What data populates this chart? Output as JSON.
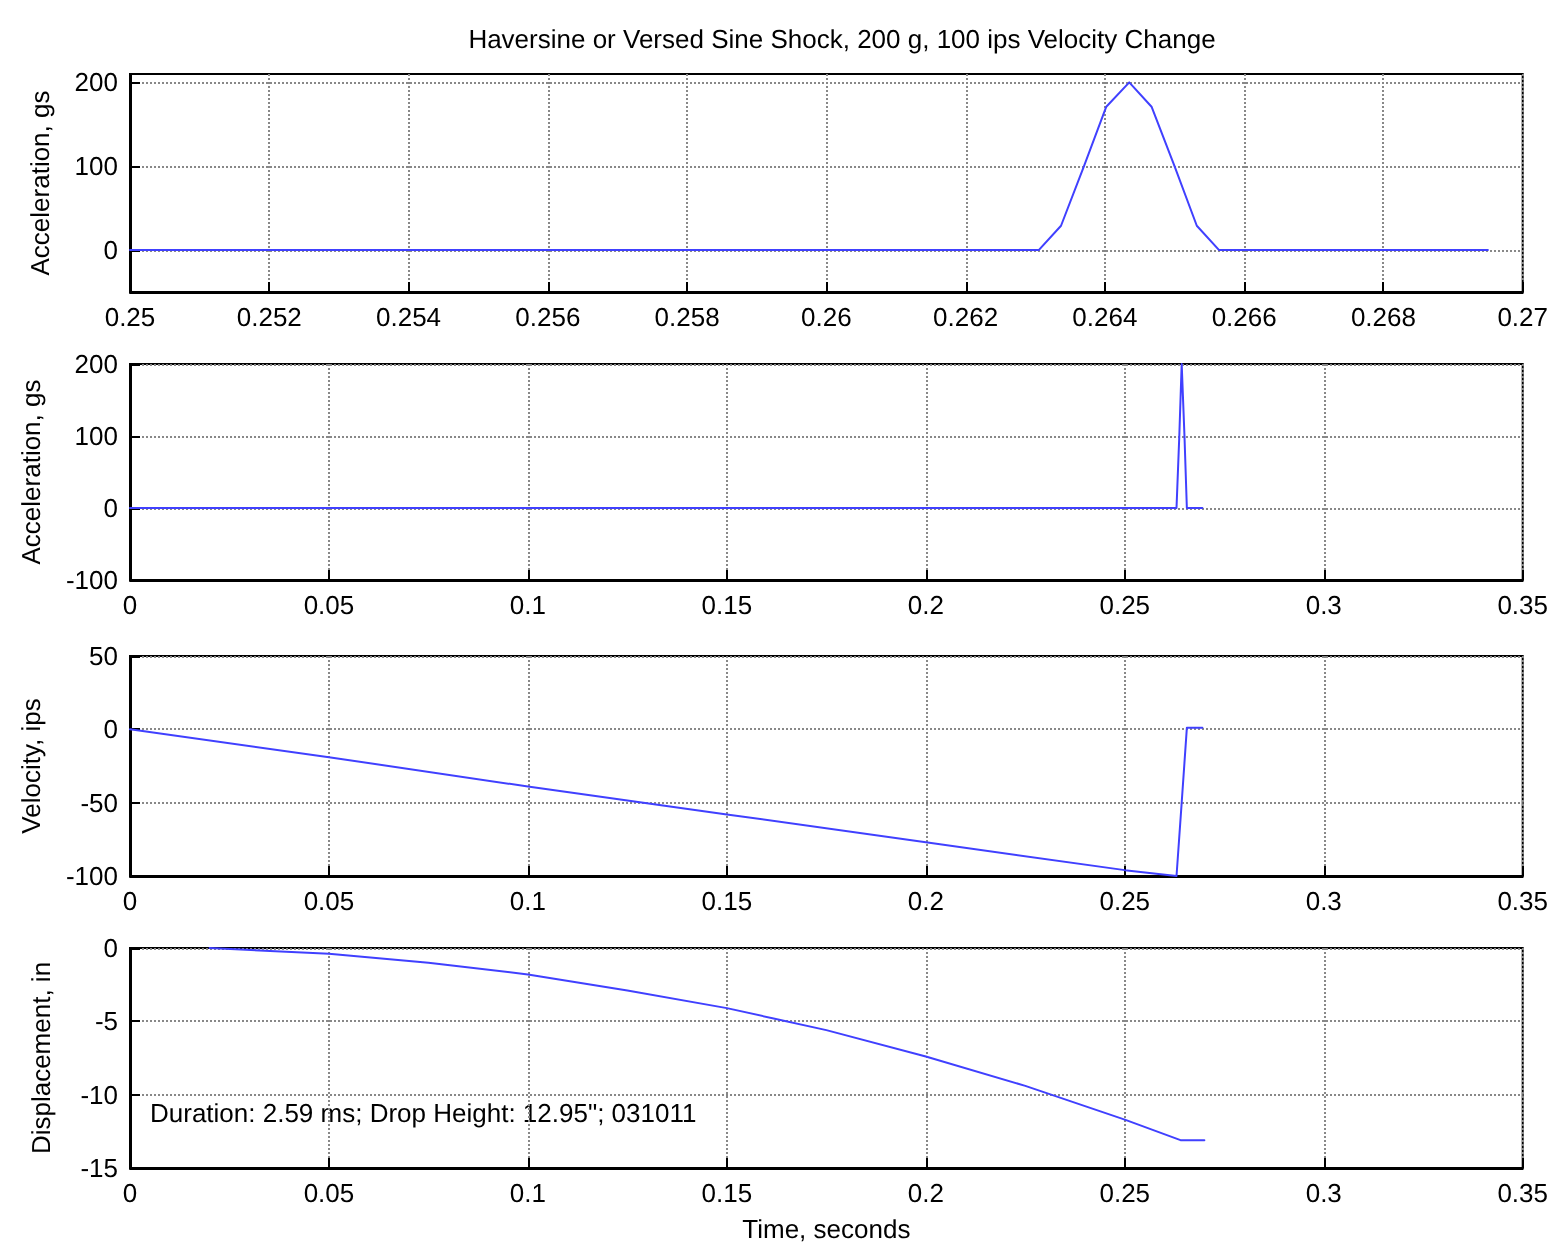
{
  "chart_data": [
    {
      "type": "line",
      "title": "Haversine or Versed Sine Shock, 200 g, 100 ips Velocity Change",
      "ylabel": "Acceleration, gs",
      "xlim": [
        0.25,
        0.27
      ],
      "ylim": [
        -50,
        210
      ],
      "xticks": [
        0.25,
        0.252,
        0.254,
        0.256,
        0.258,
        0.26,
        0.262,
        0.264,
        0.266,
        0.268,
        0.27
      ],
      "yticks": [
        0,
        100,
        200
      ],
      "grid": true,
      "marker": "none",
      "line_style": "solid",
      "series": [
        {
          "color": "#4040ff",
          "x": [
            0.25,
            0.26305,
            0.26337,
            0.2637,
            0.26402,
            0.26435,
            0.26467,
            0.265,
            0.26532,
            0.26564,
            0.2695
          ],
          "values": [
            0,
            0,
            29,
            100,
            171,
            200,
            171,
            100,
            29,
            0,
            0
          ]
        }
      ]
    },
    {
      "type": "line",
      "ylabel": "Acceleration, gs",
      "xlim": [
        0,
        0.35
      ],
      "ylim": [
        -100,
        200
      ],
      "xticks": [
        0,
        0.05,
        0.1,
        0.15,
        0.2,
        0.25,
        0.3,
        0.35
      ],
      "yticks": [
        -100,
        0,
        100,
        200
      ],
      "grid": true,
      "marker": "none",
      "line_style": "solid",
      "series": [
        {
          "color": "#4040ff",
          "x": [
            0,
            0.263,
            0.2637,
            0.2643,
            0.265,
            0.2656,
            0.2695
          ],
          "values": [
            0,
            0,
            100,
            200,
            100,
            0,
            0
          ]
        }
      ]
    },
    {
      "type": "line",
      "ylabel": "Velocity, ips",
      "xlim": [
        0,
        0.35
      ],
      "ylim": [
        -100,
        50
      ],
      "xticks": [
        0,
        0.05,
        0.1,
        0.15,
        0.2,
        0.25,
        0.3,
        0.35
      ],
      "yticks": [
        -100,
        -50,
        0,
        50
      ],
      "grid": true,
      "marker": "none",
      "line_style": "solid",
      "series": [
        {
          "color": "#4040ff",
          "x": [
            0,
            0.05,
            0.1,
            0.15,
            0.2,
            0.25,
            0.263,
            0.2643,
            0.2656,
            0.2695
          ],
          "values": [
            0,
            -19,
            -39,
            -58,
            -77,
            -96,
            -100,
            -50,
            1,
            1
          ]
        }
      ]
    },
    {
      "type": "line",
      "ylabel": "Displacement, in",
      "xlabel": "Time, seconds",
      "xlim": [
        0,
        0.35
      ],
      "ylim": [
        -15,
        0
      ],
      "xticks": [
        0,
        0.05,
        0.1,
        0.15,
        0.2,
        0.25,
        0.3,
        0.35
      ],
      "yticks": [
        -15,
        -10,
        -5,
        0
      ],
      "grid": true,
      "marker": "none",
      "line_style": "solid",
      "annotations": [
        "Duration: 2.59 ms; Drop Height: 12.95\"; 031011"
      ],
      "series": [
        {
          "color": "#4040ff",
          "x": [
            0.02,
            0.05,
            0.075,
            0.1,
            0.125,
            0.15,
            0.175,
            0.2,
            0.225,
            0.25,
            0.264,
            0.27
          ],
          "values": [
            0,
            -0.4,
            -1.0,
            -1.8,
            -2.9,
            -4.1,
            -5.6,
            -7.4,
            -9.4,
            -11.7,
            -13.1,
            -13.1
          ]
        }
      ]
    }
  ]
}
